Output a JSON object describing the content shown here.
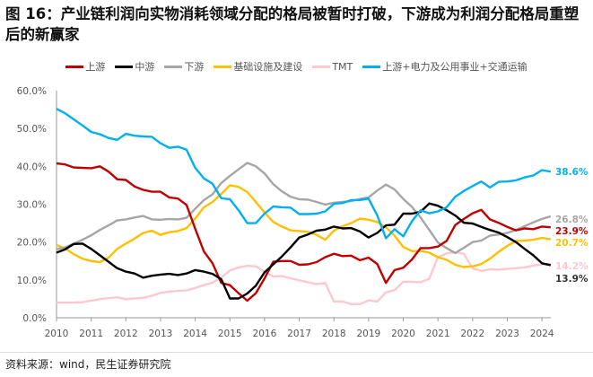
{
  "title": "图 16：产业链利润向实物消耗领域分配的格局被暂时打破，下游成为利润分配格局重塑后的新赢家",
  "source": "资料来源：wind，民生证券研究院",
  "chart_data": {
    "type": "line",
    "title": "图 16：产业链利润向实物消耗领域分配的格局被暂时打破，下游成为利润分配格局重塑后的新赢家",
    "xlabel": "",
    "ylabel": "",
    "x_tick_labels": [
      "2010",
      "2011",
      "2012",
      "2013",
      "2014",
      "2015",
      "2016",
      "2017",
      "2018",
      "2019",
      "2020",
      "2021",
      "2022",
      "2023",
      "2024"
    ],
    "y_tick_labels": [
      "0.0%",
      "10.0%",
      "20.0%",
      "30.0%",
      "40.0%",
      "50.0%",
      "60.0%"
    ],
    "ylim": [
      0,
      60
    ],
    "xlim": [
      2010,
      2024.5
    ],
    "x_start": 2010,
    "x_step_years": 0.25,
    "grid": false,
    "legend_position": "top",
    "series": [
      {
        "name": "上游",
        "color": "#C00000",
        "end_label": "23.9%",
        "values": [
          40.8,
          40.5,
          39.7,
          39.6,
          39.5,
          40.0,
          38.6,
          36.6,
          36.4,
          34.7,
          33.8,
          33.3,
          33.3,
          31.8,
          31.5,
          29.8,
          23.5,
          17.5,
          14.4,
          9.2,
          8.6,
          6.5,
          4.5,
          6.5,
          10.4,
          14.8,
          15.0,
          15.0,
          14.0,
          14.1,
          14.7,
          16.0,
          16.9,
          16.3,
          16.4,
          15.2,
          15.9,
          14.2,
          9.2,
          12.6,
          13.2,
          15.4,
          18.4,
          18.4,
          18.8,
          20.3,
          24.5,
          26.1,
          27.6,
          28.5,
          26.0,
          25.1,
          24.0,
          23.1,
          23.6,
          23.4,
          24.1,
          23.9
        ]
      },
      {
        "name": "中游",
        "color": "#000000",
        "end_label": "13.9%",
        "values": [
          17.2,
          18.1,
          19.5,
          19.6,
          18.2,
          16.5,
          14.8,
          13.1,
          12.2,
          11.7,
          10.6,
          11.1,
          11.4,
          11.6,
          11.3,
          11.7,
          12.6,
          12.2,
          11.6,
          10.2,
          5.1,
          5.1,
          6.4,
          8.5,
          12.0,
          14.1,
          16.2,
          18.6,
          21.2,
          22.0,
          23.0,
          23.3,
          24.1,
          23.6,
          23.7,
          22.8,
          21.2,
          22.4,
          24.4,
          24.6,
          27.5,
          27.5,
          28.0,
          30.2,
          29.6,
          28.4,
          27.0,
          25.1,
          24.9,
          24.0,
          23.2,
          22.5,
          21.3,
          20.0,
          18.2,
          16.5,
          14.4,
          13.9
        ]
      },
      {
        "name": "下游",
        "color": "#A6A6A6",
        "end_label": "26.8%",
        "values": [
          18.1,
          18.6,
          19.6,
          20.6,
          21.8,
          23.2,
          24.4,
          25.7,
          26.0,
          26.5,
          26.9,
          26.0,
          25.9,
          26.1,
          26.0,
          26.4,
          28.8,
          31.1,
          32.6,
          35.6,
          37.5,
          39.2,
          40.9,
          40.0,
          38.1,
          35.3,
          33.4,
          32.0,
          31.3,
          31.2,
          30.6,
          29.9,
          30.4,
          30.6,
          30.8,
          31.4,
          31.8,
          33.6,
          35.2,
          33.9,
          31.4,
          29.3,
          26.5,
          23.2,
          19.9,
          18.4,
          17.1,
          18.5,
          20.0,
          20.4,
          21.7,
          22.0,
          22.4,
          23.2,
          24.2,
          25.2,
          26.1,
          26.8
        ]
      },
      {
        "name": "基础设施及建设",
        "color": "#FFC000",
        "end_label": "20.7%",
        "values": [
          19.2,
          18.3,
          16.8,
          15.6,
          15.0,
          14.7,
          15.9,
          18.2,
          19.6,
          20.9,
          22.4,
          23.0,
          21.9,
          22.6,
          22.9,
          23.7,
          26.2,
          29.2,
          30.6,
          32.7,
          35.0,
          34.6,
          33.2,
          30.6,
          27.8,
          25.3,
          24.1,
          23.1,
          22.9,
          22.7,
          21.9,
          20.6,
          23.0,
          24.2,
          25.0,
          26.2,
          25.9,
          25.3,
          23.9,
          21.7,
          18.7,
          17.6,
          17.7,
          17.2,
          16.0,
          15.3,
          14.0,
          13.4,
          13.6,
          14.2,
          15.6,
          17.4,
          19.0,
          20.3,
          20.4,
          20.6,
          21.1,
          20.7
        ]
      },
      {
        "name": "TMT",
        "color": "#FFC7CE",
        "end_label": "14.2%",
        "values": [
          4.0,
          4.0,
          4.0,
          4.1,
          4.5,
          4.9,
          5.2,
          5.4,
          4.9,
          5.1,
          5.3,
          5.8,
          6.6,
          6.9,
          7.1,
          7.2,
          7.9,
          8.6,
          9.3,
          10.6,
          12.5,
          13.3,
          13.7,
          13.6,
          12.1,
          10.9,
          11.0,
          10.4,
          9.9,
          9.4,
          8.9,
          9.2,
          4.3,
          4.3,
          3.6,
          3.6,
          4.6,
          4.3,
          6.7,
          7.3,
          9.5,
          9.5,
          9.4,
          10.3,
          16.0,
          17.0,
          17.3,
          16.9,
          13.0,
          12.4,
          12.8,
          12.7,
          12.9,
          13.1,
          13.3,
          13.8,
          14.1,
          14.2
        ]
      },
      {
        "name": "上游+电力及公用事业+交通运输",
        "color": "#00B0F0",
        "end_label": "38.6%",
        "values": [
          55.2,
          54.0,
          52.4,
          50.8,
          49.1,
          48.5,
          47.5,
          47.0,
          48.6,
          48.1,
          47.9,
          47.8,
          46.1,
          44.9,
          45.2,
          44.4,
          39.6,
          36.8,
          35.4,
          31.6,
          31.3,
          28.4,
          25.0,
          25.0,
          27.5,
          29.4,
          29.2,
          29.1,
          27.4,
          27.4,
          27.5,
          28.1,
          30.1,
          30.3,
          31.1,
          31.1,
          31.5,
          27.0,
          21.0,
          23.4,
          21.5,
          25.5,
          28.4,
          27.6,
          28.1,
          29.2,
          32.0,
          33.5,
          34.8,
          36.0,
          34.4,
          35.9,
          36.0,
          36.3,
          37.1,
          37.6,
          39.0,
          38.6
        ]
      }
    ]
  }
}
